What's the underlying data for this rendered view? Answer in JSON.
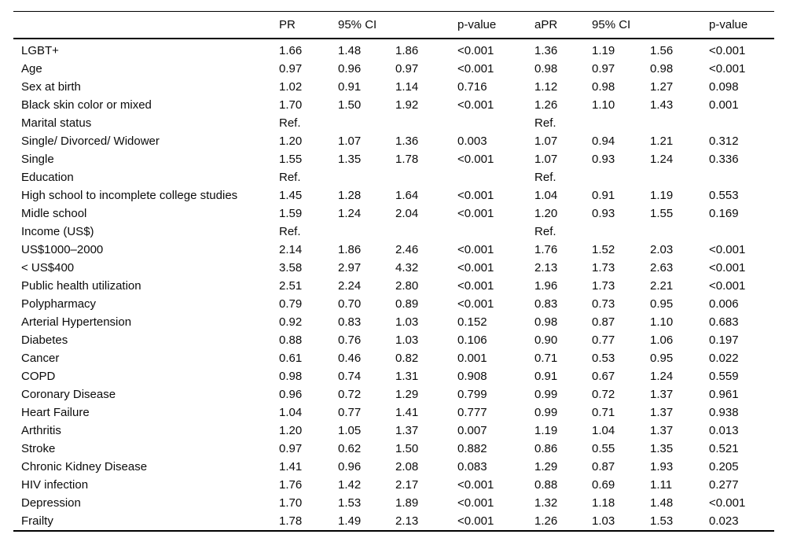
{
  "table": {
    "header": {
      "label": "",
      "pr": "PR",
      "ci": "95% CI",
      "p_value": "p-value",
      "apr": "aPR",
      "ci2": "95% CI",
      "p_value2": "p-value"
    },
    "rows": [
      {
        "label": "LGBT+",
        "values": [
          "1.66",
          "1.48",
          "1.86",
          "<0.001",
          "1.36",
          "1.19",
          "1.56",
          "<0.001"
        ]
      },
      {
        "label": "Age",
        "values": [
          "0.97",
          "0.96",
          "0.97",
          "<0.001",
          "0.98",
          "0.97",
          "0.98",
          "<0.001"
        ]
      },
      {
        "label": "Sex at birth",
        "values": [
          "1.02",
          "0.91",
          "1.14",
          "0.716",
          "1.12",
          "0.98",
          "1.27",
          "0.098"
        ]
      },
      {
        "label": "Black skin color or mixed",
        "values": [
          "1.70",
          "1.50",
          "1.92",
          "<0.001",
          "1.26",
          "1.10",
          "1.43",
          "0.001"
        ]
      },
      {
        "label": "Marital status",
        "values": [
          "Ref.",
          "",
          "",
          "",
          "Ref.",
          "",
          "",
          ""
        ]
      },
      {
        "label": "Single/ Divorced/ Widower",
        "values": [
          "1.20",
          "1.07",
          "1.36",
          "0.003",
          "1.07",
          "0.94",
          "1.21",
          "0.312"
        ]
      },
      {
        "label": "Single",
        "values": [
          "1.55",
          "1.35",
          "1.78",
          "<0.001",
          "1.07",
          "0.93",
          "1.24",
          "0.336"
        ]
      },
      {
        "label": "Education",
        "values": [
          "Ref.",
          "",
          "",
          "",
          "Ref.",
          "",
          "",
          ""
        ]
      },
      {
        "label": "High school to incomplete college studies",
        "values": [
          "1.45",
          "1.28",
          "1.64",
          "<0.001",
          "1.04",
          "0.91",
          "1.19",
          "0.553"
        ]
      },
      {
        "label": "Midle school",
        "values": [
          "1.59",
          "1.24",
          "2.04",
          "<0.001",
          "1.20",
          "0.93",
          "1.55",
          "0.169"
        ]
      },
      {
        "label": "Income (US$)",
        "values": [
          "Ref.",
          "",
          "",
          "",
          "Ref.",
          "",
          "",
          ""
        ]
      },
      {
        "label": "US$1000–2000",
        "values": [
          "2.14",
          "1.86",
          "2.46",
          "<0.001",
          "1.76",
          "1.52",
          "2.03",
          "<0.001"
        ]
      },
      {
        "label": "< US$400",
        "values": [
          "3.58",
          "2.97",
          "4.32",
          "<0.001",
          "2.13",
          "1.73",
          "2.63",
          "<0.001"
        ]
      },
      {
        "label": "Public health utilization",
        "values": [
          "2.51",
          "2.24",
          "2.80",
          "<0.001",
          "1.96",
          "1.73",
          "2.21",
          "<0.001"
        ]
      },
      {
        "label": "Polypharmacy",
        "values": [
          "0.79",
          "0.70",
          "0.89",
          "<0.001",
          "0.83",
          "0.73",
          "0.95",
          "0.006"
        ]
      },
      {
        "label": "Arterial Hypertension",
        "values": [
          "0.92",
          "0.83",
          "1.03",
          "0.152",
          "0.98",
          "0.87",
          "1.10",
          "0.683"
        ]
      },
      {
        "label": "Diabetes",
        "values": [
          "0.88",
          "0.76",
          "1.03",
          "0.106",
          "0.90",
          "0.77",
          "1.06",
          "0.197"
        ]
      },
      {
        "label": "Cancer",
        "values": [
          "0.61",
          "0.46",
          "0.82",
          "0.001",
          "0.71",
          "0.53",
          "0.95",
          "0.022"
        ]
      },
      {
        "label": "COPD",
        "values": [
          "0.98",
          "0.74",
          "1.31",
          "0.908",
          "0.91",
          "0.67",
          "1.24",
          "0.559"
        ]
      },
      {
        "label": "Coronary Disease",
        "values": [
          "0.96",
          "0.72",
          "1.29",
          "0.799",
          "0.99",
          "0.72",
          "1.37",
          "0.961"
        ]
      },
      {
        "label": "Heart Failure",
        "values": [
          "1.04",
          "0.77",
          "1.41",
          "0.777",
          "0.99",
          "0.71",
          "1.37",
          "0.938"
        ]
      },
      {
        "label": "Arthritis",
        "values": [
          "1.20",
          "1.05",
          "1.37",
          "0.007",
          "1.19",
          "1.04",
          "1.37",
          "0.013"
        ]
      },
      {
        "label": "Stroke",
        "values": [
          "0.97",
          "0.62",
          "1.50",
          "0.882",
          "0.86",
          "0.55",
          "1.35",
          "0.521"
        ]
      },
      {
        "label": "Chronic Kidney Disease",
        "values": [
          "1.41",
          "0.96",
          "2.08",
          "0.083",
          "1.29",
          "0.87",
          "1.93",
          "0.205"
        ]
      },
      {
        "label": "HIV infection",
        "values": [
          "1.76",
          "1.42",
          "2.17",
          "<0.001",
          "0.88",
          "0.69",
          "1.11",
          "0.277"
        ]
      },
      {
        "label": "Depression",
        "values": [
          "1.70",
          "1.53",
          "1.89",
          "<0.001",
          "1.32",
          "1.18",
          "1.48",
          "<0.001"
        ]
      },
      {
        "label": "Frailty",
        "values": [
          "1.78",
          "1.49",
          "2.13",
          "<0.001",
          "1.26",
          "1.03",
          "1.53",
          "0.023"
        ]
      }
    ],
    "column_keys": [
      "pr",
      "ci-low",
      "ci-high",
      "p-value",
      "apr",
      "adj-ci-low",
      "adj-ci-high",
      "adj-p-value"
    ]
  }
}
